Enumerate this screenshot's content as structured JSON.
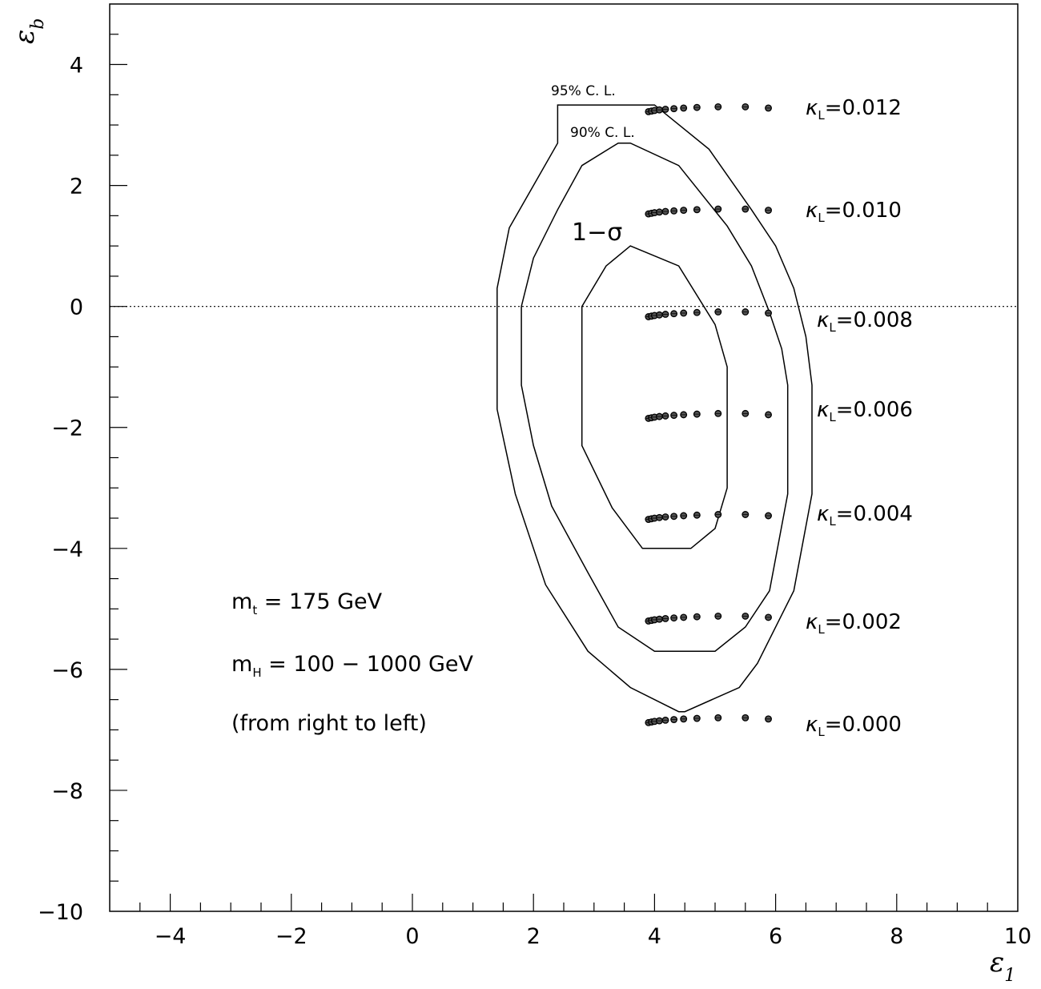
{
  "chart_data": {
    "type": "scatter",
    "xlabel": "ε",
    "xlabel_sub": "1",
    "ylabel": "ε",
    "ylabel_sub": "b",
    "xlim": [
      -5,
      10
    ],
    "ylim": [
      -10,
      5
    ],
    "x_ticks": [
      -4,
      -2,
      0,
      2,
      4,
      6,
      8,
      10
    ],
    "x_tick_labels": [
      "−4",
      "−2",
      "0",
      "2",
      "4",
      "6",
      "8",
      "10"
    ],
    "y_ticks": [
      4,
      2,
      0,
      -2,
      -4,
      -6,
      -8,
      -10
    ],
    "y_tick_labels": [
      "4",
      "2",
      "0",
      "−2",
      "−4",
      "−6",
      "−8",
      "−10"
    ],
    "reference_line": {
      "y": 0,
      "style": "dotted"
    },
    "contours": [
      {
        "name": "95% C. L.",
        "label": "95% C. L.",
        "points": [
          [
            2.4,
            3.33
          ],
          [
            4.0,
            3.33
          ],
          [
            4.9,
            2.6
          ],
          [
            5.6,
            1.6
          ],
          [
            6.0,
            1.0
          ],
          [
            6.3,
            0.3
          ],
          [
            6.5,
            -0.5
          ],
          [
            6.6,
            -1.3
          ],
          [
            6.6,
            -3.1
          ],
          [
            6.3,
            -4.7
          ],
          [
            5.7,
            -5.9
          ],
          [
            5.4,
            -6.3
          ],
          [
            4.5,
            -6.7
          ],
          [
            4.4,
            -6.7
          ],
          [
            3.6,
            -6.3
          ],
          [
            2.9,
            -5.7
          ],
          [
            2.2,
            -4.6
          ],
          [
            1.7,
            -3.1
          ],
          [
            1.4,
            -1.7
          ],
          [
            1.4,
            0.3
          ],
          [
            1.6,
            1.3
          ],
          [
            2.0,
            2.0
          ],
          [
            2.4,
            2.7
          ]
        ]
      },
      {
        "name": "90% C. L.",
        "label": "90% C. L.",
        "points": [
          [
            2.8,
            2.33
          ],
          [
            3.4,
            2.7
          ],
          [
            3.6,
            2.7
          ],
          [
            4.4,
            2.33
          ],
          [
            5.2,
            1.33
          ],
          [
            5.6,
            0.67
          ],
          [
            5.9,
            -0.1
          ],
          [
            6.1,
            -0.7
          ],
          [
            6.2,
            -1.3
          ],
          [
            6.2,
            -3.1
          ],
          [
            5.9,
            -4.7
          ],
          [
            5.5,
            -5.3
          ],
          [
            5.0,
            -5.7
          ],
          [
            4.0,
            -5.7
          ],
          [
            3.4,
            -5.3
          ],
          [
            2.9,
            -4.4
          ],
          [
            2.3,
            -3.3
          ],
          [
            2.0,
            -2.3
          ],
          [
            1.8,
            -1.3
          ],
          [
            1.8,
            0.0
          ],
          [
            2.0,
            0.8
          ],
          [
            2.4,
            1.6
          ]
        ]
      },
      {
        "name": "1−σ",
        "label": "1−σ",
        "points": [
          [
            3.6,
            1.0
          ],
          [
            4.4,
            0.67
          ],
          [
            5.0,
            -0.3
          ],
          [
            5.2,
            -1.0
          ],
          [
            5.2,
            -3.0
          ],
          [
            5.0,
            -3.67
          ],
          [
            4.6,
            -4.0
          ],
          [
            3.8,
            -4.0
          ],
          [
            3.3,
            -3.33
          ],
          [
            2.8,
            -2.3
          ],
          [
            2.8,
            0.0
          ],
          [
            3.2,
            0.67
          ]
        ]
      }
    ],
    "point_x": [
      3.9,
      3.95,
      4.0,
      4.08,
      4.18,
      4.32,
      4.48,
      4.7,
      5.05,
      5.5,
      5.88
    ],
    "series": [
      {
        "label": "κ",
        "sub": "L",
        "value": "=0.012",
        "y": [
          3.22,
          3.23,
          3.24,
          3.25,
          3.26,
          3.27,
          3.28,
          3.29,
          3.3,
          3.3,
          3.28
        ]
      },
      {
        "label": "κ",
        "sub": "L",
        "value": "=0.010",
        "y": [
          1.53,
          1.54,
          1.55,
          1.56,
          1.57,
          1.58,
          1.59,
          1.6,
          1.61,
          1.61,
          1.59
        ]
      },
      {
        "label": "κ",
        "sub": "L",
        "value": "=0.008",
        "y": [
          -0.17,
          -0.16,
          -0.15,
          -0.14,
          -0.13,
          -0.12,
          -0.11,
          -0.1,
          -0.09,
          -0.09,
          -0.11
        ]
      },
      {
        "label": "κ",
        "sub": "L",
        "value": "=0.006",
        "y": [
          -1.85,
          -1.84,
          -1.83,
          -1.82,
          -1.81,
          -1.8,
          -1.79,
          -1.78,
          -1.77,
          -1.77,
          -1.79
        ]
      },
      {
        "label": "κ",
        "sub": "L",
        "value": "=0.004",
        "y": [
          -3.52,
          -3.51,
          -3.5,
          -3.49,
          -3.48,
          -3.47,
          -3.46,
          -3.45,
          -3.44,
          -3.44,
          -3.46
        ]
      },
      {
        "label": "κ",
        "sub": "L",
        "value": "=0.002",
        "y": [
          -5.2,
          -5.19,
          -5.18,
          -5.17,
          -5.16,
          -5.15,
          -5.14,
          -5.13,
          -5.12,
          -5.12,
          -5.14
        ]
      },
      {
        "label": "κ",
        "sub": "L",
        "value": "=0.000",
        "y": [
          -6.88,
          -6.87,
          -6.86,
          -6.85,
          -6.84,
          -6.83,
          -6.82,
          -6.81,
          -6.8,
          -6.8,
          -6.82
        ]
      }
    ],
    "annotations": [
      {
        "text": "m",
        "sub": "t",
        "rest": " = 175 GeV"
      },
      {
        "text": "m",
        "sub": "H",
        "rest": " = 100 − 1000 GeV"
      },
      {
        "text": "(from right to left)",
        "sub": "",
        "rest": ""
      }
    ]
  }
}
